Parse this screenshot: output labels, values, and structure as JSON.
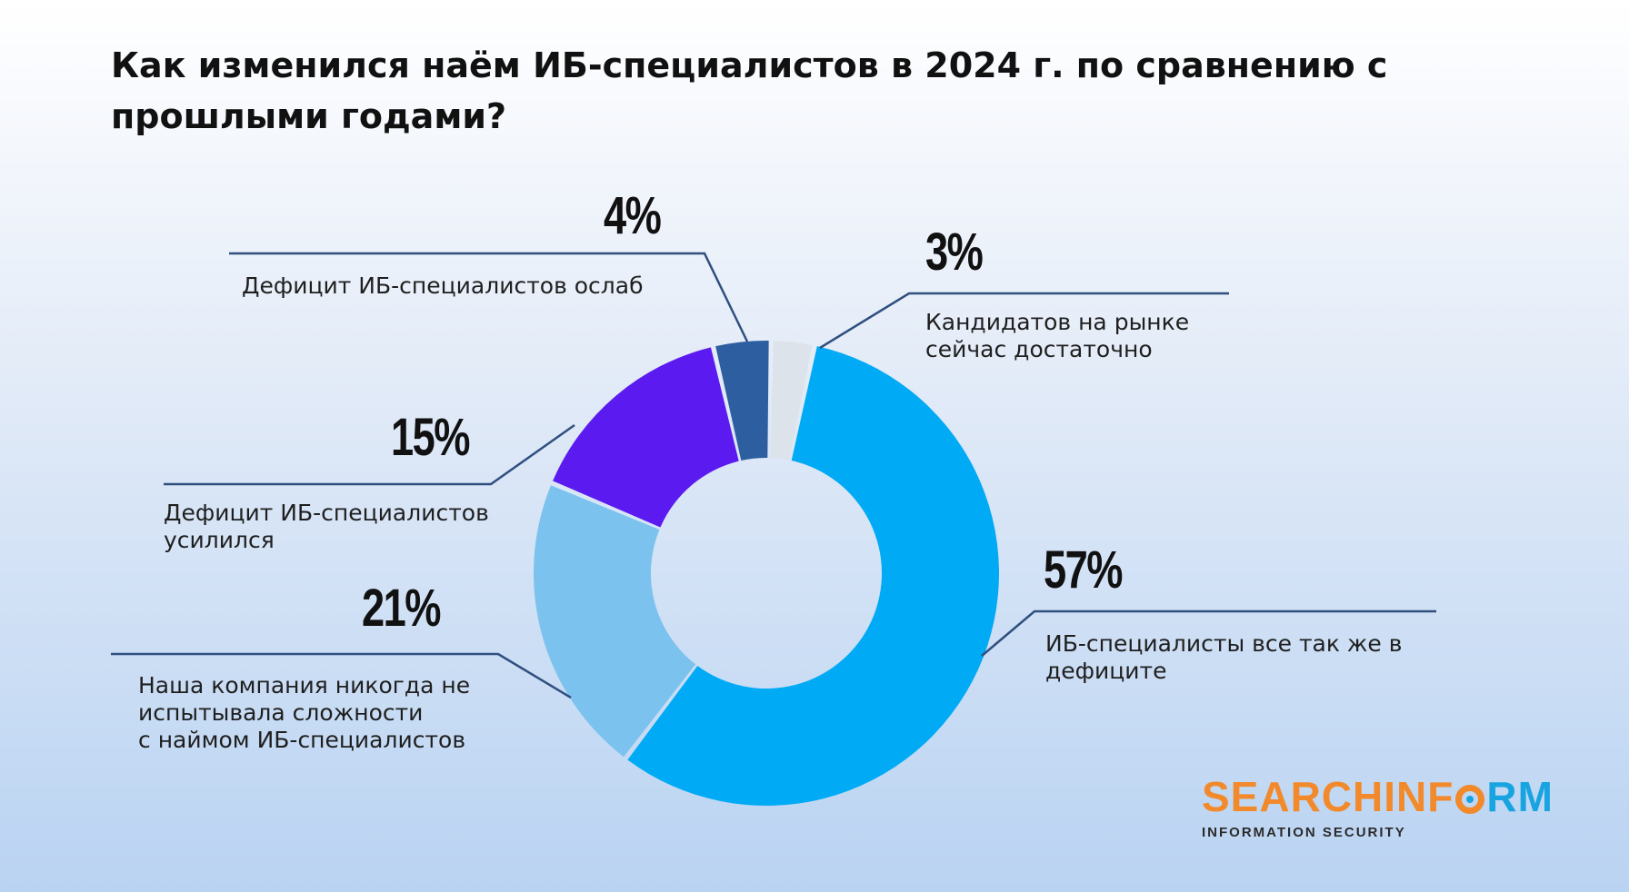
{
  "chart_data": {
    "type": "pie",
    "title": "Как изменился наём ИБ-специалистов в 2024 г. по сравнению с прошлыми годами?",
    "slices": [
      {
        "label": "ИБ-специалисты все так же в\nдефиците",
        "value": 57,
        "display": "57%",
        "color": "#00aaf5"
      },
      {
        "label": "Наша компания никогда не\nиспытывала сложности\nс наймом ИБ-специалистов",
        "value": 21,
        "display": "21%",
        "color": "#7cc2ee"
      },
      {
        "label": "Дефицит ИБ-специалистов\nусилился",
        "value": 15,
        "display": "15%",
        "color": "#5b1aef"
      },
      {
        "label": "Дефицит ИБ-специалистов ослаб",
        "value": 4,
        "display": "4%",
        "color": "#2d5fa0"
      },
      {
        "label": "Кандидатов на рынке\nсейчас достаточно",
        "value": 3,
        "display": "3%",
        "color": "#dde3ea"
      }
    ]
  },
  "brand": {
    "name_part1": "SEARCH",
    "name_part2": "INF",
    "name_part3": "RM",
    "tagline": "INFORMATION SECURITY",
    "color_orange": "#f28a2c",
    "color_blue": "#18a4e0"
  },
  "leader_color": "#2f4f7f"
}
